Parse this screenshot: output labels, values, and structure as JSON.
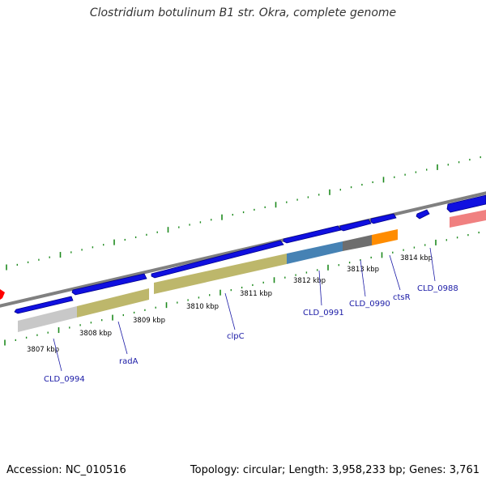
{
  "title": "Clostridium botulinum B1 str. Okra, complete genome",
  "footer": {
    "accession": "Accession: NC_010516",
    "summary": "Topology: circular; Length: 3,958,233 bp; Genes: 3,761"
  },
  "scale_labels": [
    "3807 kbp",
    "3808 kbp",
    "3809 kbp",
    "3810 kbp",
    "3811 kbp",
    "3812 kbp",
    "3813 kbp",
    "3814 kbp"
  ],
  "gene_labels": [
    "CLD_0994",
    "radA",
    "clpC",
    "CLD_0991",
    "CLD_0990",
    "ctsR",
    "CLD_0988"
  ],
  "colors": {
    "backbone": "#808080",
    "tick_green": "#1e8a1e",
    "gene_blue": "#1010e0",
    "label_blue": "#1a1aa6",
    "khaki": "#bdb76b",
    "steelblue": "#4682b4",
    "gray": "#6e6e6e",
    "orange": "#ff8c00",
    "light_gray": "#c8c8c8",
    "salmon": "#f08080",
    "red": "#ff0000"
  }
}
